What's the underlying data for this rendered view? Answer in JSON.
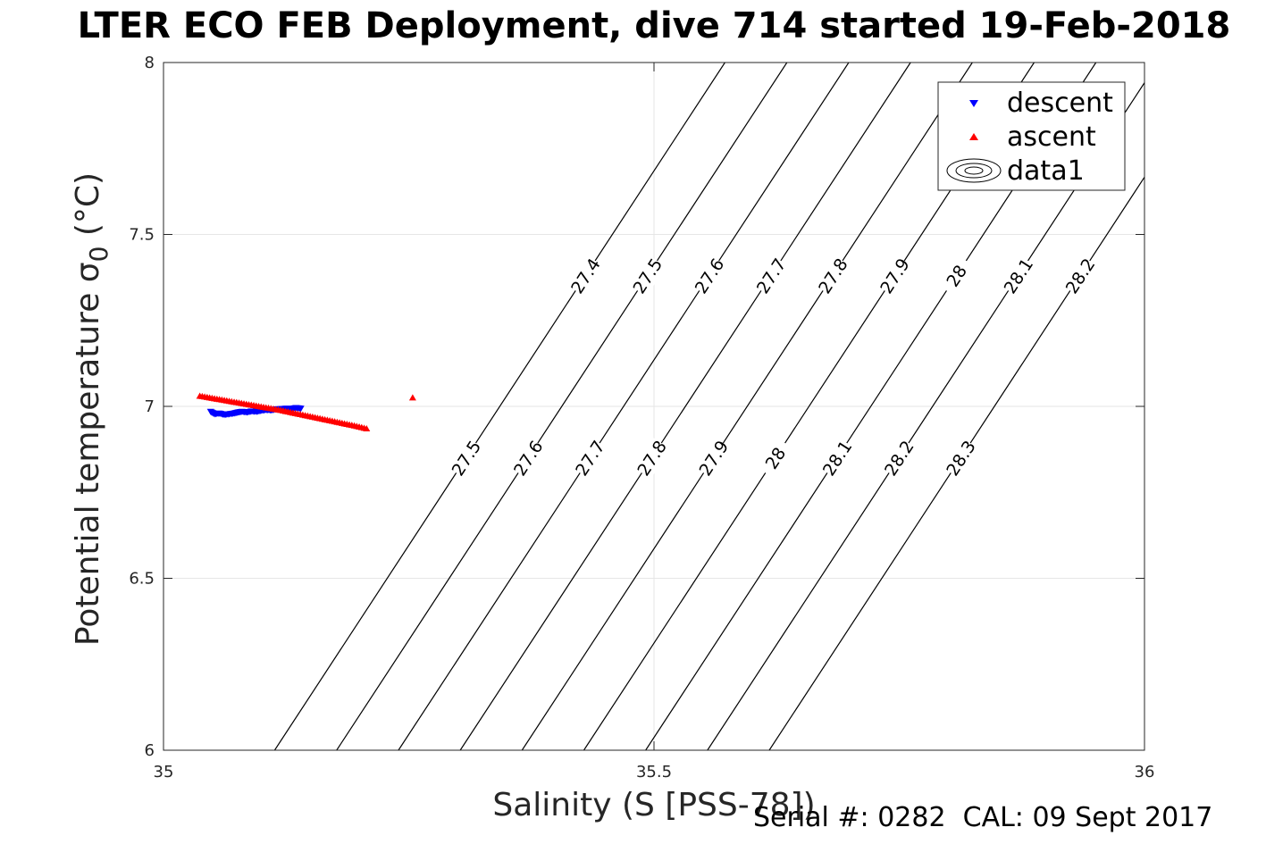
{
  "chart_data": {
    "type": "scatter",
    "title": "LTER ECO FEB Deployment, dive 714 started 19-Feb-2018",
    "xlabel": "Salinity (S [PSS-78])",
    "ylabel_main": "Potential temperature σ",
    "ylabel_sub": "0",
    "ylabel_unit": " (°C)",
    "xlim": [
      35,
      36
    ],
    "ylim": [
      6,
      8
    ],
    "xticks": [
      35,
      35.5,
      36
    ],
    "xtick_labels": [
      "35",
      "35.5",
      "36"
    ],
    "yticks": [
      6,
      6.5,
      7,
      7.5,
      8
    ],
    "ytick_labels": [
      "6",
      "6.5",
      "7",
      "7.5",
      "8"
    ],
    "grid": true,
    "legend_position": "top-right",
    "legend": [
      "descent",
      "ascent",
      "data1"
    ],
    "series": [
      {
        "name": "descent",
        "marker": "triangle-down",
        "color": "#0000ff",
        "points": [
          [
            35.048,
            6.985
          ],
          [
            35.052,
            6.978
          ],
          [
            35.057,
            6.98
          ],
          [
            35.062,
            6.976
          ],
          [
            35.067,
            6.978
          ],
          [
            35.072,
            6.98
          ],
          [
            35.076,
            6.983
          ],
          [
            35.08,
            6.985
          ],
          [
            35.085,
            6.983
          ],
          [
            35.09,
            6.986
          ],
          [
            35.095,
            6.985
          ],
          [
            35.1,
            6.988
          ],
          [
            35.105,
            6.99
          ],
          [
            35.11,
            6.989
          ],
          [
            35.115,
            6.992
          ],
          [
            35.12,
            6.993
          ],
          [
            35.125,
            6.994
          ],
          [
            35.13,
            6.993
          ],
          [
            35.135,
            6.996
          ],
          [
            35.14,
            6.994
          ]
        ]
      },
      {
        "name": "ascent",
        "marker": "triangle-up",
        "color": "#ff0000",
        "points": [
          [
            35.037,
            7.03
          ],
          [
            35.047,
            7.025
          ],
          [
            35.057,
            7.02
          ],
          [
            35.067,
            7.015
          ],
          [
            35.077,
            7.01
          ],
          [
            35.087,
            7.005
          ],
          [
            35.097,
            7.0
          ],
          [
            35.107,
            6.995
          ],
          [
            35.117,
            6.99
          ],
          [
            35.127,
            6.984
          ],
          [
            35.137,
            6.978
          ],
          [
            35.147,
            6.972
          ],
          [
            35.157,
            6.966
          ],
          [
            35.167,
            6.96
          ],
          [
            35.177,
            6.954
          ],
          [
            35.187,
            6.948
          ],
          [
            35.197,
            6.942
          ],
          [
            35.207,
            6.935
          ],
          [
            35.254,
            7.025
          ]
        ]
      }
    ],
    "contours": [
      {
        "a": 0.1133,
        "seg_labels": [
          "27.4",
          "27.5"
        ]
      },
      {
        "a": 0.1765,
        "seg_labels": [
          "27.5",
          "27.6"
        ]
      },
      {
        "a": 0.2395,
        "seg_labels": [
          "27.6",
          "27.7"
        ]
      },
      {
        "a": 0.3025,
        "seg_labels": [
          "27.7",
          "27.8"
        ]
      },
      {
        "a": 0.3655,
        "seg_labels": [
          "27.8",
          "27.9"
        ]
      },
      {
        "a": 0.4285,
        "seg_labels": [
          "27.9",
          "28"
        ]
      },
      {
        "a": 0.4915,
        "seg_labels": [
          "28",
          "28.1"
        ]
      },
      {
        "a": 0.5545,
        "seg_labels": [
          "28.1",
          "28.2"
        ]
      },
      {
        "a": 0.6175,
        "seg_labels": [
          "28.2",
          "28.3"
        ]
      }
    ],
    "contour_slope": 0.2295
  },
  "footer": "Serial #: 0282  CAL: 09 Sept 2017"
}
